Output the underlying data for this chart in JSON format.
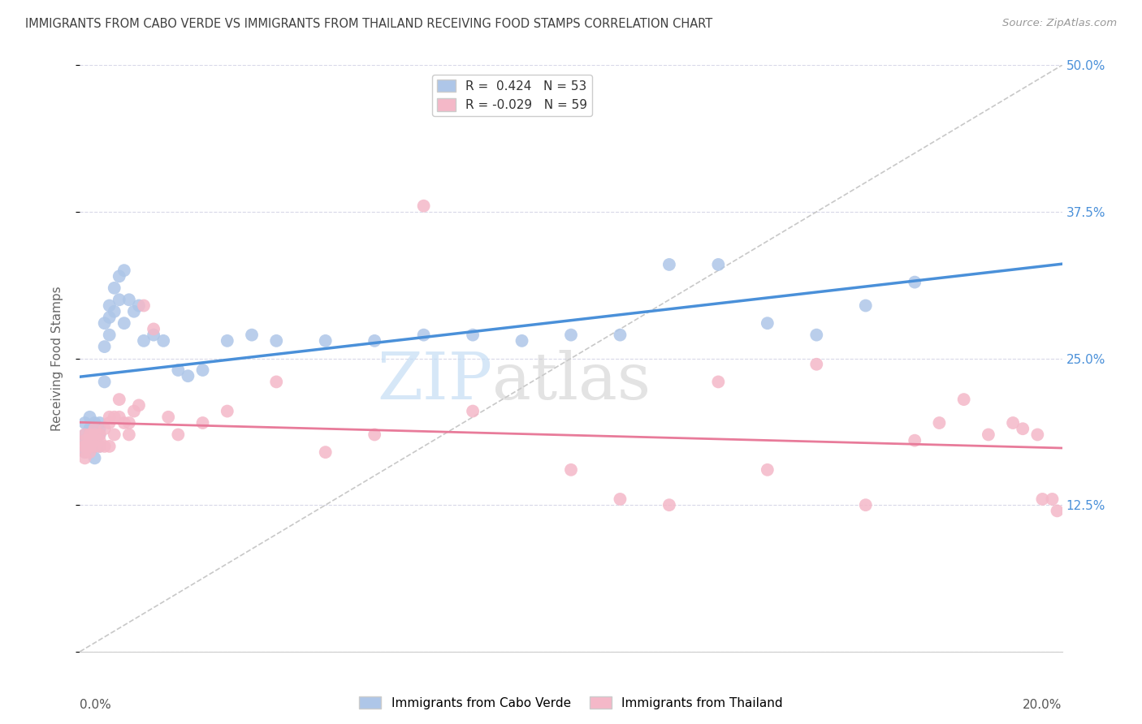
{
  "title": "IMMIGRANTS FROM CABO VERDE VS IMMIGRANTS FROM THAILAND RECEIVING FOOD STAMPS CORRELATION CHART",
  "source": "Source: ZipAtlas.com",
  "ylabel": "Receiving Food Stamps",
  "yticks": [
    0.0,
    0.125,
    0.25,
    0.375,
    0.5
  ],
  "ytick_labels_right": [
    "",
    "12.5%",
    "25.0%",
    "37.5%",
    "50.0%"
  ],
  "xlim": [
    0.0,
    0.2
  ],
  "ylim": [
    0.0,
    0.5
  ],
  "cabo_verde_color": "#aec6e8",
  "thailand_color": "#f4b8c8",
  "cabo_verde_line_color": "#4a90d9",
  "thailand_line_color": "#e87b9a",
  "ref_line_color": "#c8c8c8",
  "background_color": "#ffffff",
  "grid_color": "#d8d8e8",
  "title_color": "#404040",
  "source_color": "#999999",
  "cabo_verde_x": [
    0.001,
    0.001,
    0.001,
    0.001,
    0.002,
    0.002,
    0.002,
    0.002,
    0.003,
    0.003,
    0.003,
    0.003,
    0.004,
    0.004,
    0.004,
    0.004,
    0.005,
    0.005,
    0.005,
    0.006,
    0.006,
    0.006,
    0.007,
    0.007,
    0.008,
    0.008,
    0.009,
    0.009,
    0.01,
    0.011,
    0.012,
    0.013,
    0.015,
    0.017,
    0.02,
    0.022,
    0.025,
    0.03,
    0.035,
    0.04,
    0.05,
    0.06,
    0.07,
    0.08,
    0.09,
    0.1,
    0.11,
    0.12,
    0.13,
    0.14,
    0.15,
    0.16,
    0.17
  ],
  "cabo_verde_y": [
    0.195,
    0.185,
    0.17,
    0.18,
    0.185,
    0.19,
    0.2,
    0.175,
    0.195,
    0.185,
    0.175,
    0.165,
    0.19,
    0.195,
    0.185,
    0.175,
    0.28,
    0.26,
    0.23,
    0.295,
    0.27,
    0.285,
    0.31,
    0.29,
    0.32,
    0.3,
    0.325,
    0.28,
    0.3,
    0.29,
    0.295,
    0.265,
    0.27,
    0.265,
    0.24,
    0.235,
    0.24,
    0.265,
    0.27,
    0.265,
    0.265,
    0.265,
    0.27,
    0.27,
    0.265,
    0.27,
    0.27,
    0.33,
    0.33,
    0.28,
    0.27,
    0.295,
    0.315
  ],
  "thailand_x": [
    0.001,
    0.001,
    0.001,
    0.001,
    0.001,
    0.001,
    0.002,
    0.002,
    0.002,
    0.002,
    0.002,
    0.003,
    0.003,
    0.003,
    0.004,
    0.004,
    0.004,
    0.005,
    0.005,
    0.006,
    0.006,
    0.006,
    0.007,
    0.007,
    0.008,
    0.008,
    0.009,
    0.01,
    0.01,
    0.011,
    0.012,
    0.013,
    0.015,
    0.018,
    0.02,
    0.025,
    0.03,
    0.04,
    0.05,
    0.06,
    0.07,
    0.08,
    0.1,
    0.11,
    0.12,
    0.13,
    0.14,
    0.15,
    0.16,
    0.17,
    0.175,
    0.18,
    0.185,
    0.19,
    0.192,
    0.195,
    0.196,
    0.198,
    0.199
  ],
  "thailand_y": [
    0.18,
    0.175,
    0.185,
    0.175,
    0.17,
    0.165,
    0.18,
    0.175,
    0.185,
    0.175,
    0.17,
    0.185,
    0.19,
    0.175,
    0.185,
    0.175,
    0.18,
    0.19,
    0.175,
    0.195,
    0.2,
    0.175,
    0.2,
    0.185,
    0.2,
    0.215,
    0.195,
    0.195,
    0.185,
    0.205,
    0.21,
    0.295,
    0.275,
    0.2,
    0.185,
    0.195,
    0.205,
    0.23,
    0.17,
    0.185,
    0.38,
    0.205,
    0.155,
    0.13,
    0.125,
    0.23,
    0.155,
    0.245,
    0.125,
    0.18,
    0.195,
    0.215,
    0.185,
    0.195,
    0.19,
    0.185,
    0.13,
    0.13,
    0.12
  ],
  "watermark_zip_color": "#c5ddf5",
  "watermark_atlas_color": "#c5c5c5"
}
